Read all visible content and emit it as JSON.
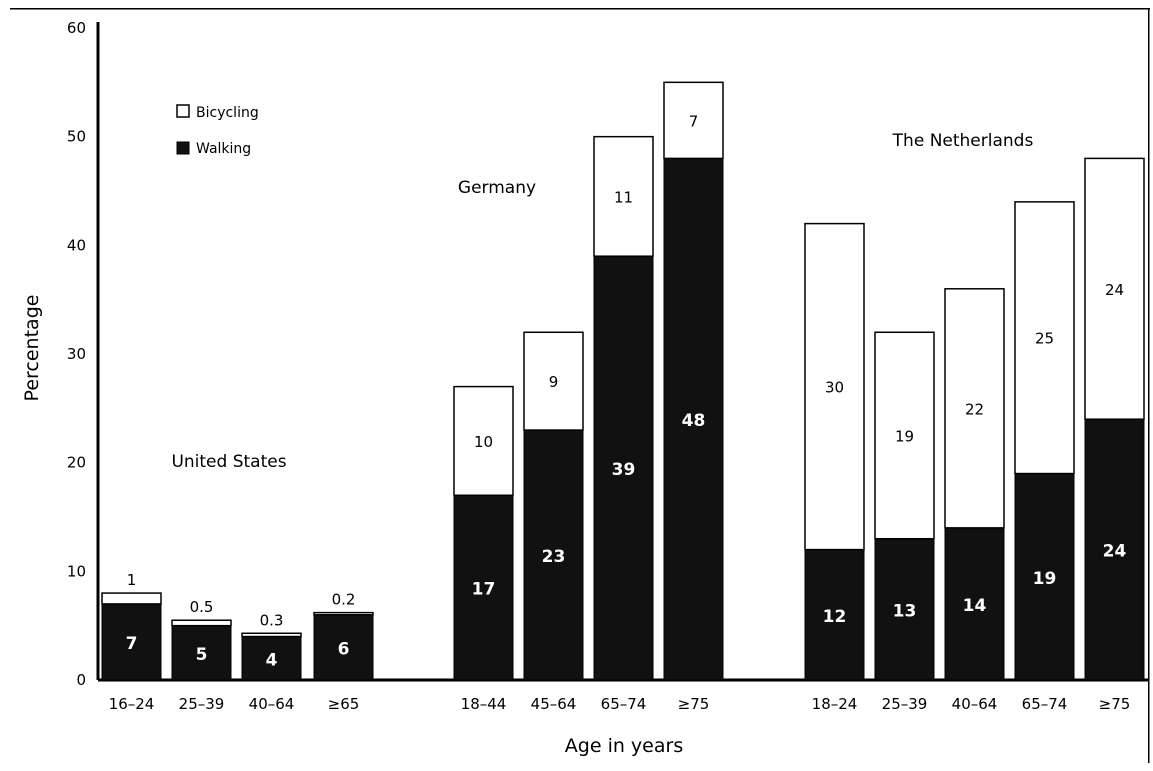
{
  "chart_data": {
    "type": "bar",
    "stacked": true,
    "title": "",
    "xlabel": "Age in years",
    "ylabel": "Percentage",
    "ylim": [
      0,
      60
    ],
    "yticks": [
      "0",
      "10",
      "20",
      "30",
      "40",
      "50",
      "60"
    ],
    "legend": {
      "placement": "top-left",
      "entries": [
        {
          "name": "Bicycling",
          "color": "#ffffff"
        },
        {
          "name": "Walking",
          "color": "#111111"
        }
      ]
    },
    "groups": [
      {
        "name": "United States",
        "categories": [
          "16–24",
          "25–39",
          "40–64",
          "≥65"
        ]
      },
      {
        "name": "Germany",
        "categories": [
          "18–44",
          "45–64",
          "65–74",
          "≥75"
        ]
      },
      {
        "name": "The Netherlands",
        "categories": [
          "18–24",
          "25–39",
          "40–64",
          "65–74",
          "≥75"
        ]
      }
    ],
    "series": [
      {
        "name": "Walking",
        "values": [
          7,
          5,
          4,
          6,
          17,
          23,
          39,
          48,
          12,
          13,
          14,
          19,
          24
        ],
        "labels": [
          "7",
          "5",
          "4",
          "6",
          "17",
          "23",
          "39",
          "48",
          "12",
          "13",
          "14",
          "19",
          "24"
        ]
      },
      {
        "name": "Bicycling",
        "values": [
          1,
          0.5,
          0.3,
          0.2,
          10,
          9,
          11,
          7,
          30,
          19,
          22,
          25,
          24
        ],
        "labels": [
          "1",
          "0.5",
          "0.3",
          "0.2",
          "10",
          "9",
          "11",
          "7",
          "30",
          "19",
          "22",
          "25",
          "24"
        ]
      }
    ]
  }
}
